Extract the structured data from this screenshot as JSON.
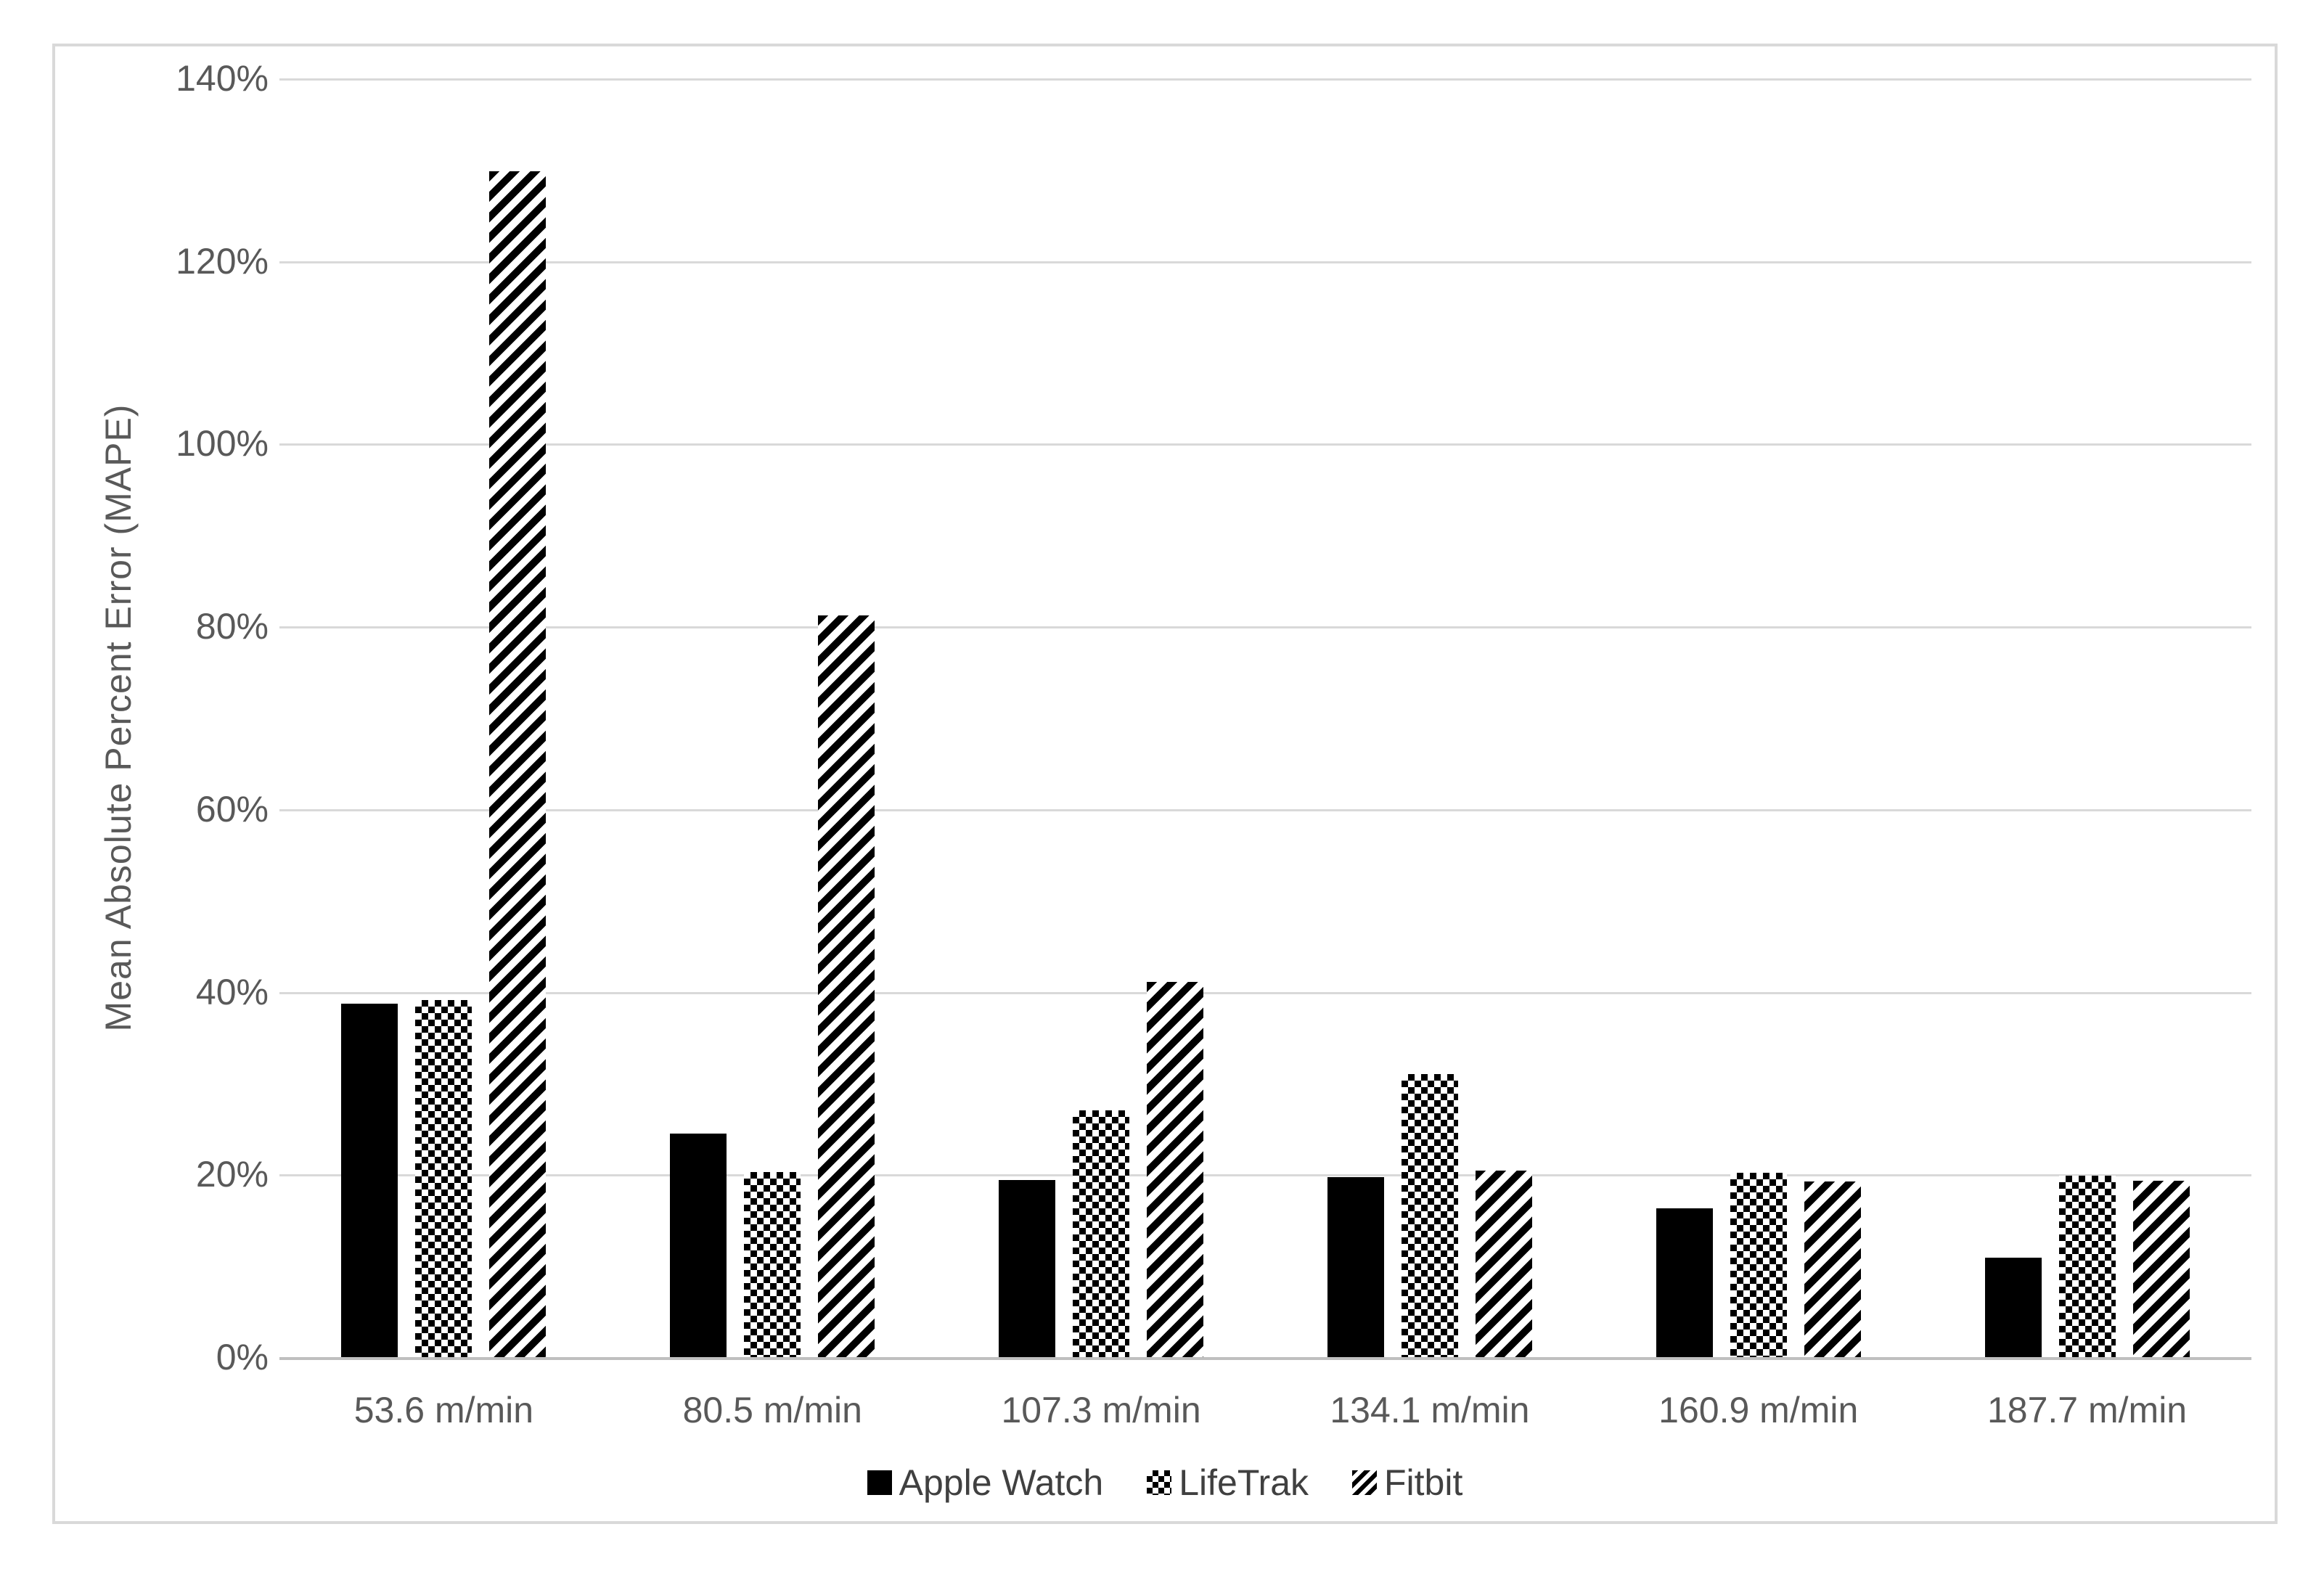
{
  "chart_data": {
    "type": "bar",
    "title": "",
    "xlabel": "",
    "ylabel": "Mean Absolute Percent Error (MAPE)",
    "ylim": [
      0,
      140
    ],
    "y_tick_step": 20,
    "y_ticks": [
      "0%",
      "20%",
      "40%",
      "60%",
      "80%",
      "100%",
      "120%",
      "140%"
    ],
    "grid": true,
    "legend_position": "bottom-center",
    "categories": [
      "53.6 m/min",
      "80.5 m/min",
      "107.3 m/min",
      "134.1 m/min",
      "160.9 m/min",
      "187.7 m/min"
    ],
    "series": [
      {
        "name": "Apple Watch",
        "pattern": "solid-black",
        "values": [
          38.7,
          24.5,
          19.4,
          19.7,
          16.3,
          10.9
        ]
      },
      {
        "name": "LifeTrak",
        "pattern": "checkerboard",
        "values": [
          39.1,
          20.3,
          27.0,
          31.0,
          20.2,
          19.9
        ]
      },
      {
        "name": "Fitbit",
        "pattern": "diagonal-stripes",
        "values": [
          129.8,
          81.2,
          41.1,
          20.4,
          19.2,
          19.3
        ]
      }
    ],
    "colors": {
      "bar_fill": "#000000",
      "gridline": "#d9d9d9",
      "axis_line": "#bfbfbf",
      "tick_text": "#595959",
      "legend_text": "#404040",
      "frame_border": "#d9d9d9"
    }
  }
}
